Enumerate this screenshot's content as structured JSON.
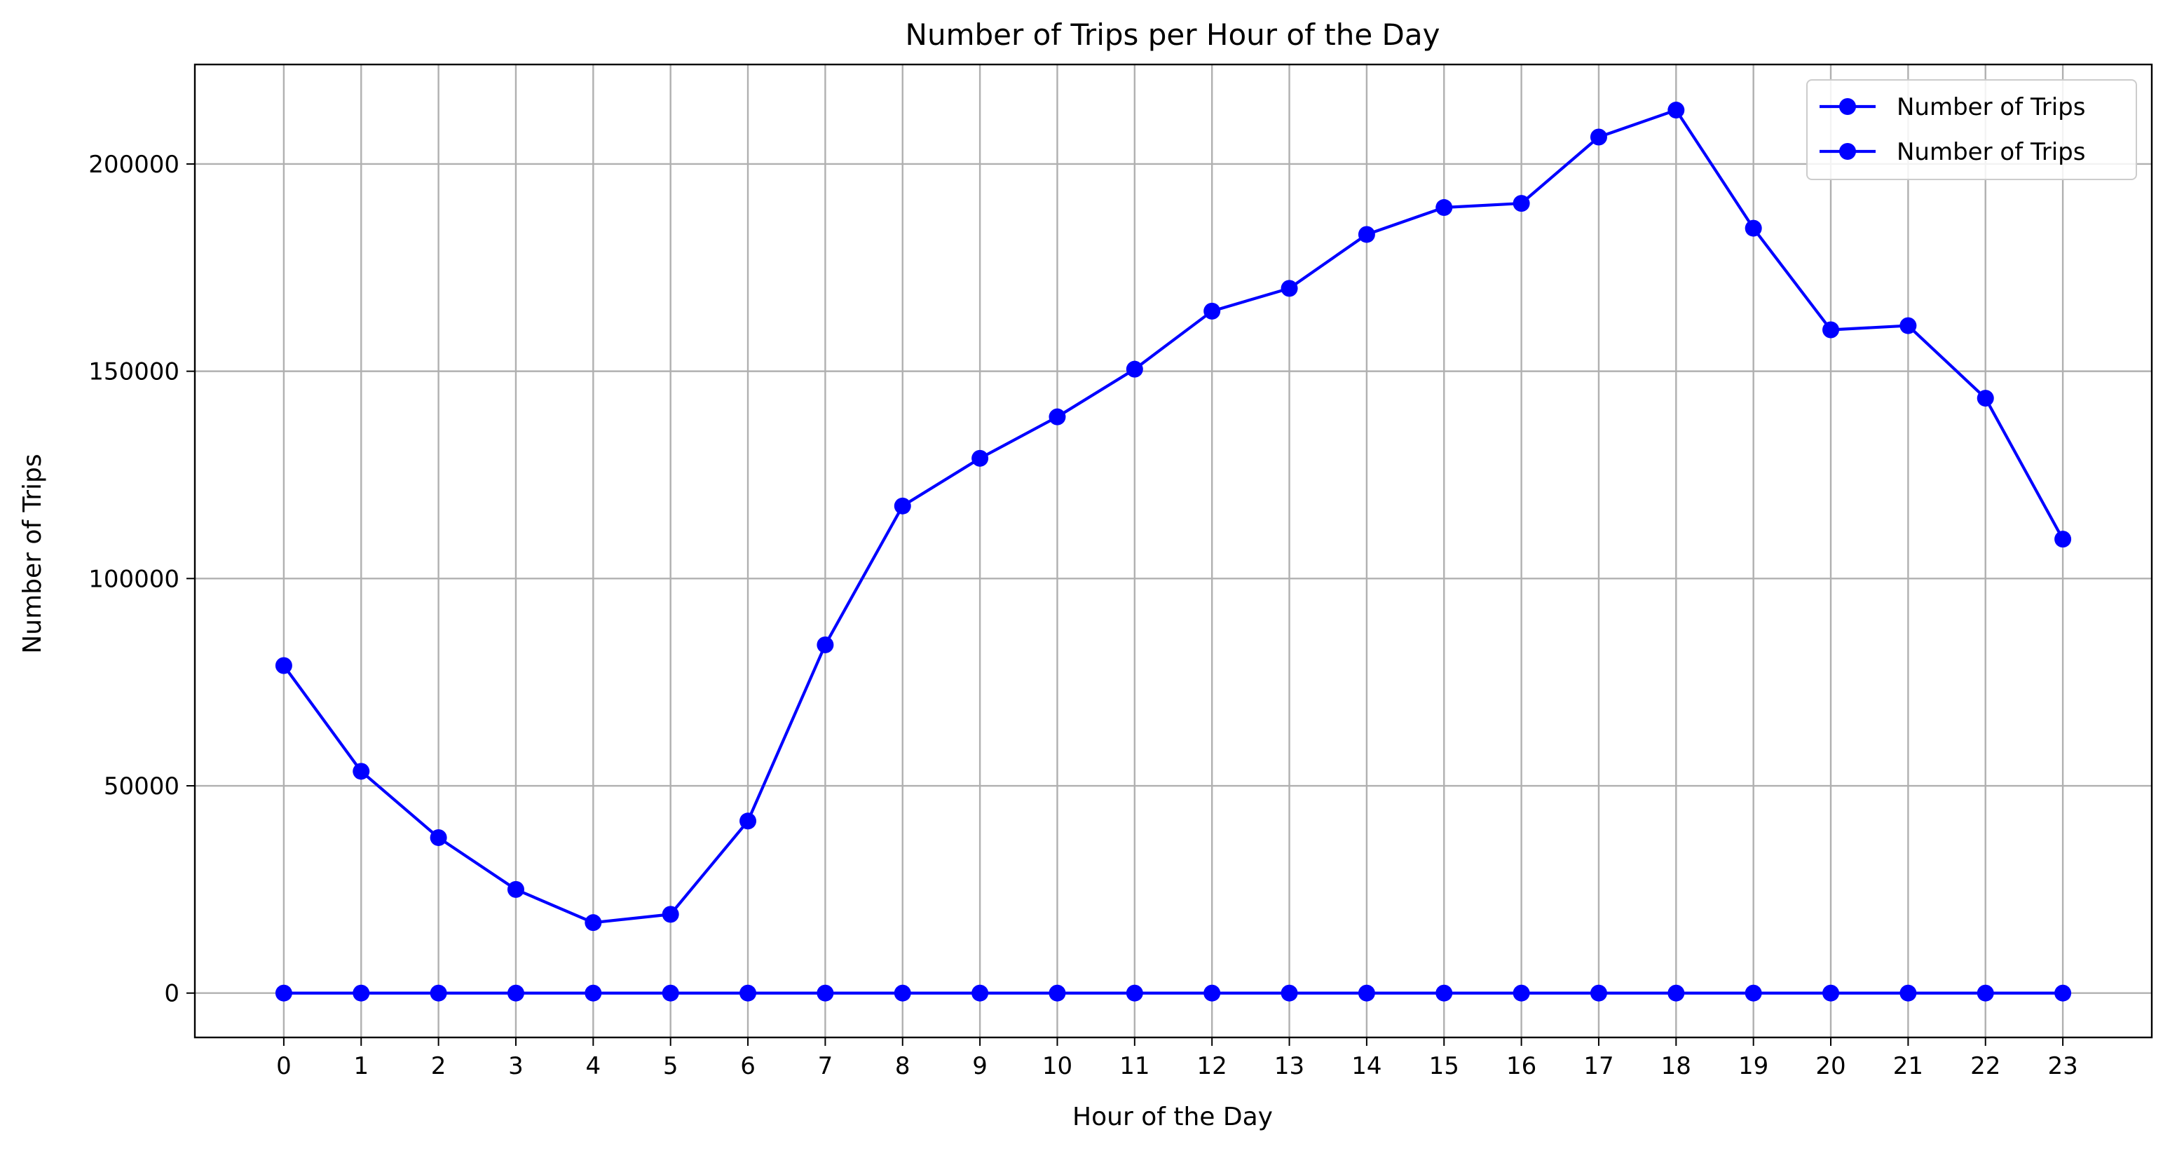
{
  "chart_data": {
    "type": "line",
    "title": "Number of Trips per Hour of the Day",
    "xlabel": "Hour of the Day",
    "ylabel": "Number of Trips",
    "x": [
      0,
      1,
      2,
      3,
      4,
      5,
      6,
      7,
      8,
      9,
      10,
      11,
      12,
      13,
      14,
      15,
      16,
      17,
      18,
      19,
      20,
      21,
      22,
      23
    ],
    "xticks": [
      "0",
      "1",
      "2",
      "3",
      "4",
      "5",
      "6",
      "7",
      "8",
      "9",
      "10",
      "11",
      "12",
      "13",
      "14",
      "15",
      "16",
      "17",
      "18",
      "19",
      "20",
      "21",
      "22",
      "23"
    ],
    "yticks": [
      0,
      50000,
      100000,
      150000,
      200000
    ],
    "ytick_labels": [
      "0",
      "50000",
      "100000",
      "150000",
      "200000"
    ],
    "xlim": [
      -1.15,
      24.15
    ],
    "ylim": [
      -10700,
      224000
    ],
    "grid": true,
    "legend_position": "top-right",
    "series": [
      {
        "name": "Number of Trips",
        "color": "#0000ff",
        "marker": "circle",
        "values": [
          79000,
          53500,
          37500,
          25000,
          17000,
          19000,
          41500,
          84000,
          117500,
          129000,
          139000,
          150500,
          164500,
          170000,
          183000,
          189500,
          190500,
          206500,
          213000,
          184500,
          160000,
          161000,
          143500,
          109500
        ]
      },
      {
        "name": "Number of Trips",
        "color": "#0000ff",
        "marker": "circle",
        "values": [
          0,
          0,
          0,
          0,
          0,
          0,
          0,
          0,
          0,
          0,
          0,
          0,
          0,
          0,
          0,
          0,
          0,
          0,
          0,
          0,
          0,
          0,
          0,
          0
        ]
      }
    ]
  }
}
